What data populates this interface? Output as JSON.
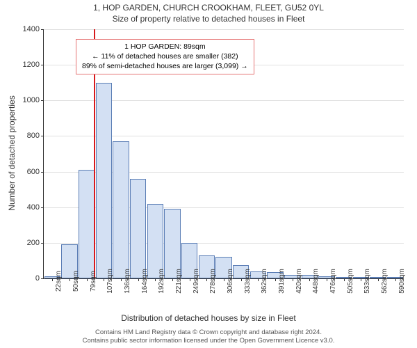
{
  "chart": {
    "type": "histogram",
    "title": "1, HOP GARDEN, CHURCH CROOKHAM, FLEET, GU52 0YL",
    "subtitle": "Size of property relative to detached houses in Fleet",
    "ylabel": "Number of detached properties",
    "xlabel": "Distribution of detached houses by size in Fleet",
    "footer1": "Contains HM Land Registry data © Crown copyright and database right 2024.",
    "footer2": "Contains public sector information licensed under the Open Government Licence v3.0.",
    "ylim": [
      0,
      1400
    ],
    "ytick_step": 200,
    "yticks": [
      0,
      200,
      400,
      600,
      800,
      1000,
      1200,
      1400
    ],
    "xticks": [
      "22sqm",
      "50sqm",
      "79sqm",
      "107sqm",
      "136sqm",
      "164sqm",
      "192sqm",
      "221sqm",
      "249sqm",
      "278sqm",
      "306sqm",
      "333sqm",
      "362sqm",
      "391sqm",
      "420sqm",
      "448sqm",
      "476sqm",
      "505sqm",
      "533sqm",
      "562sqm",
      "590sqm"
    ],
    "bar_width": 0.95,
    "bar_fill": "#d3e0f3",
    "bar_stroke": "#5a7db5",
    "values": [
      10,
      190,
      610,
      1100,
      770,
      560,
      420,
      390,
      200,
      130,
      120,
      75,
      40,
      35,
      20,
      20,
      10,
      0,
      0,
      0,
      0
    ],
    "vline_index_before": 3,
    "vline_color": "#d7191c",
    "grid_color": "#e0e0e0",
    "background_color": "#ffffff",
    "legend": {
      "line1": "1 HOP GARDEN: 89sqm",
      "line2": "← 11% of detached houses are smaller (382)",
      "line3": "89% of semi-detached houses are larger (3,099) →",
      "border_color": "#e57373",
      "fontsize": 10.5
    },
    "title_fontsize": 12,
    "label_fontsize": 12,
    "tick_fontsize": 10
  }
}
